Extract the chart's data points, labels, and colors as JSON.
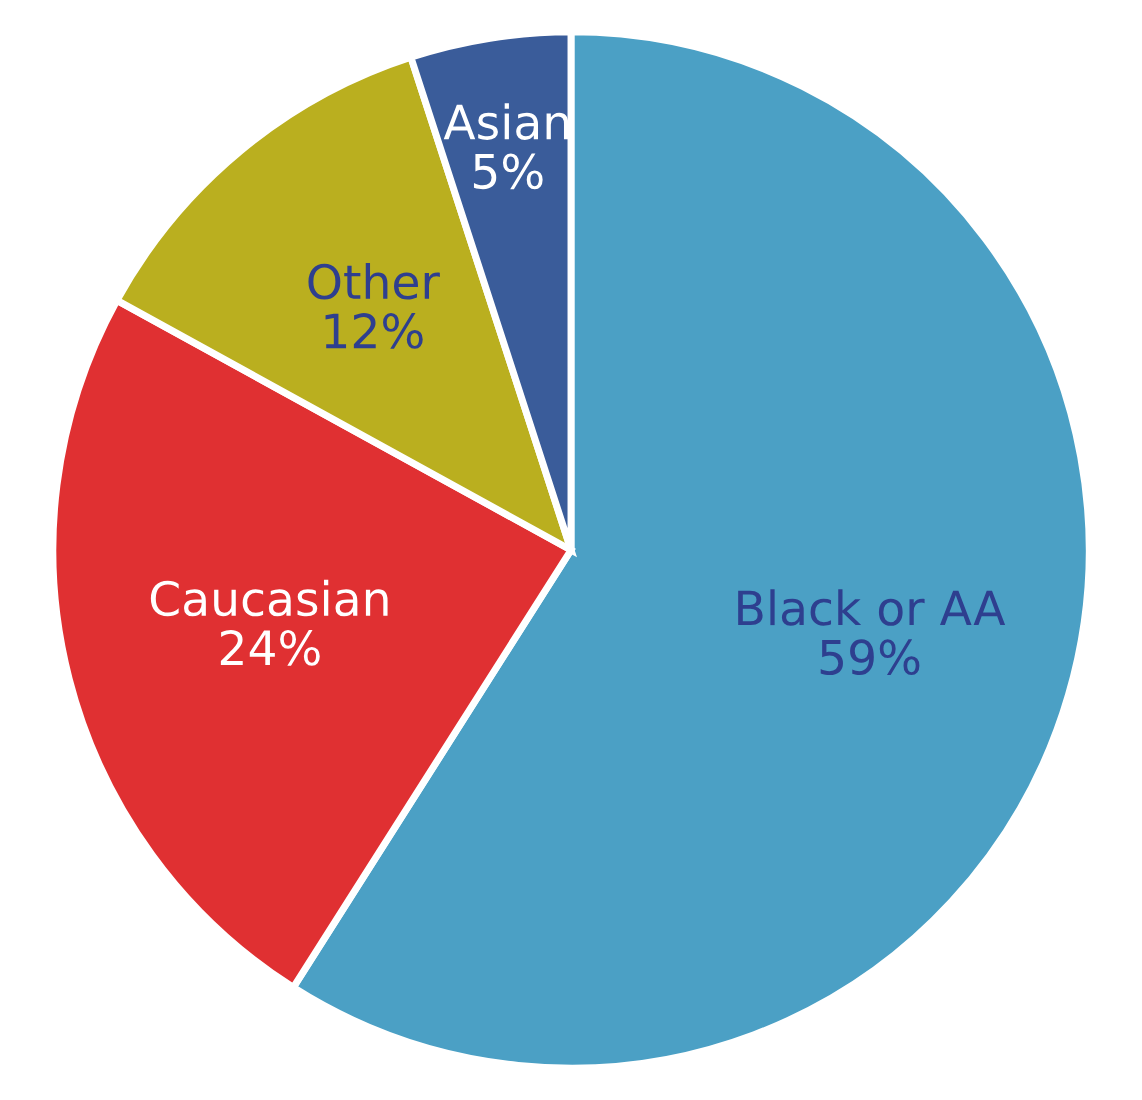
{
  "chart_data": {
    "type": "pie",
    "categories": [
      "Black or AA",
      "Caucasian",
      "Other",
      "Asian"
    ],
    "values": [
      59,
      24,
      12,
      5
    ],
    "colors": [
      "#4ba0c5",
      "#e03032",
      "#baaf1f",
      "#3a5c9a"
    ],
    "value_labels": [
      "59%",
      "24%",
      "12%",
      "5%"
    ]
  }
}
